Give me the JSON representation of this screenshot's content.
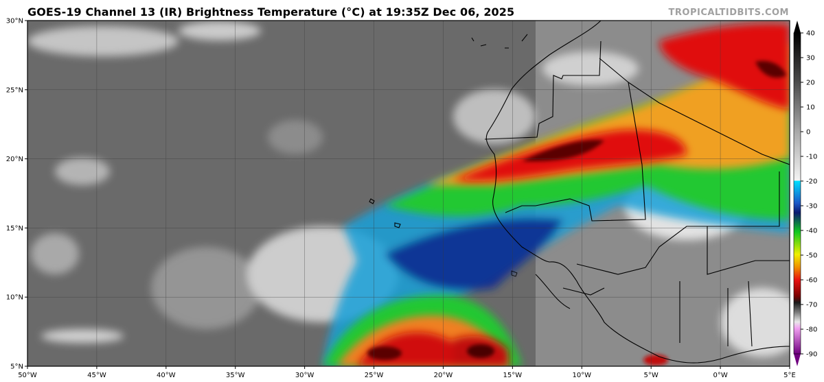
{
  "header": {
    "title": "GOES-19 Channel 13 (IR) Brightness Temperature (°C) at 19:35Z Dec 06, 2025",
    "credit": "TROPICALTIDBITS.COM"
  },
  "map": {
    "lon_labels": [
      "50°W",
      "45°W",
      "40°W",
      "35°W",
      "30°W",
      "25°W",
      "20°W",
      "15°W",
      "10°W",
      "5°W",
      "0°W",
      "5°E"
    ],
    "lat_labels": [
      "30°N",
      "25°N",
      "20°N",
      "15°N",
      "10°N",
      "5°N"
    ],
    "extent": {
      "lon": [
        -50,
        5
      ],
      "lat": [
        5,
        30
      ]
    }
  },
  "colorbar": {
    "labels": [
      "40",
      "30",
      "20",
      "10",
      "0",
      "-10",
      "-20",
      "-30",
      "-40",
      "-50",
      "-60",
      "-70",
      "-80",
      "-90"
    ],
    "range": [
      -90,
      40
    ],
    "colors": {
      "warm": "#111111",
      "neutral": "#8a8a8a",
      "cold_gray": "#f2f2f2",
      "cyan": "#00c8f0",
      "blue": "#0a2a90",
      "green": "#1ed82a",
      "yellow": "#f0e02a",
      "orange": "#f07a18",
      "red": "#e01010",
      "dark_red": "#4a0000",
      "magenta": "#c040c0"
    }
  }
}
